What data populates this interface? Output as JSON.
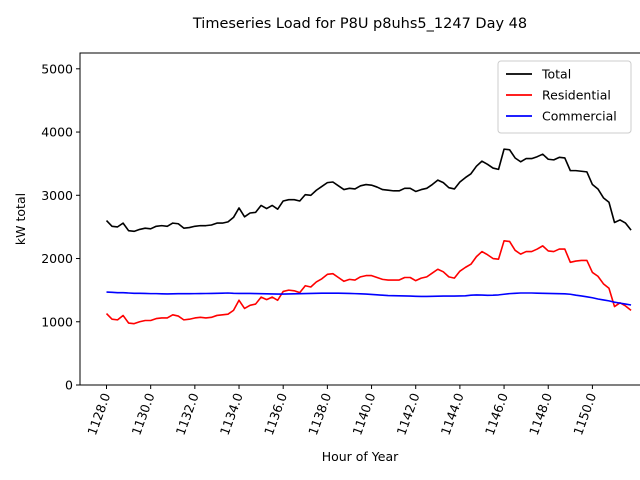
{
  "chart_data": {
    "type": "line",
    "title": "Timeseries Load for P8U p8uhs5_1247  Day 48",
    "xlabel": "Hour of Year",
    "ylabel": "kW total",
    "xlim": [
      1126.8,
      1152.2
    ],
    "ylim": [
      0,
      5250
    ],
    "xticks": [
      1128,
      1130,
      1132,
      1134,
      1136,
      1138,
      1140,
      1142,
      1144,
      1146,
      1148,
      1150
    ],
    "xtick_labels": [
      "1128.0",
      "1130.0",
      "1132.0",
      "1134.0",
      "1136.0",
      "1138.0",
      "1140.0",
      "1142.0",
      "1144.0",
      "1146.0",
      "1148.0",
      "1150.0"
    ],
    "yticks": [
      0,
      1000,
      2000,
      3000,
      4000,
      5000
    ],
    "ytick_labels": [
      "0",
      "1000",
      "2000",
      "3000",
      "4000",
      "5000"
    ],
    "legend_position": "top-right",
    "x_start": 1128.0,
    "x_step": 0.25,
    "series": [
      {
        "name": "Total",
        "color": "#000000",
        "values": [
          2600,
          2510,
          2500,
          2560,
          2440,
          2430,
          2460,
          2480,
          2470,
          2510,
          2520,
          2510,
          2560,
          2550,
          2480,
          2490,
          2510,
          2520,
          2520,
          2530,
          2560,
          2560,
          2580,
          2650,
          2800,
          2660,
          2720,
          2730,
          2840,
          2790,
          2840,
          2780,
          2910,
          2930,
          2930,
          2910,
          3010,
          3000,
          3080,
          3140,
          3200,
          3210,
          3150,
          3090,
          3110,
          3100,
          3150,
          3170,
          3160,
          3130,
          3090,
          3080,
          3070,
          3070,
          3110,
          3110,
          3060,
          3090,
          3110,
          3170,
          3240,
          3200,
          3120,
          3100,
          3210,
          3280,
          3340,
          3460,
          3540,
          3490,
          3430,
          3410,
          3730,
          3720,
          3590,
          3530,
          3580,
          3580,
          3610,
          3650,
          3570,
          3560,
          3600,
          3590,
          3390,
          3390,
          3380,
          3370,
          3170,
          3100,
          2960,
          2890,
          2570,
          2610,
          2560,
          2450
        ]
      },
      {
        "name": "Residential",
        "color": "#ff0000",
        "values": [
          1130,
          1040,
          1030,
          1100,
          980,
          970,
          1000,
          1020,
          1020,
          1050,
          1060,
          1060,
          1110,
          1090,
          1030,
          1040,
          1060,
          1070,
          1060,
          1070,
          1100,
          1110,
          1120,
          1180,
          1340,
          1210,
          1260,
          1280,
          1390,
          1350,
          1390,
          1340,
          1480,
          1500,
          1490,
          1460,
          1570,
          1550,
          1630,
          1680,
          1750,
          1760,
          1700,
          1640,
          1670,
          1660,
          1710,
          1730,
          1730,
          1700,
          1670,
          1660,
          1660,
          1660,
          1700,
          1700,
          1650,
          1690,
          1710,
          1770,
          1830,
          1790,
          1710,
          1690,
          1800,
          1860,
          1910,
          2030,
          2110,
          2060,
          2000,
          1990,
          2280,
          2270,
          2130,
          2070,
          2110,
          2110,
          2150,
          2200,
          2120,
          2110,
          2150,
          2150,
          1940,
          1960,
          1970,
          1970,
          1780,
          1720,
          1600,
          1530,
          1240,
          1300,
          1250,
          1180
        ]
      },
      {
        "name": "Commercial",
        "color": "#0000ff",
        "values": [
          1470,
          1465,
          1460,
          1460,
          1455,
          1450,
          1450,
          1448,
          1445,
          1445,
          1442,
          1440,
          1442,
          1444,
          1444,
          1444,
          1445,
          1446,
          1447,
          1448,
          1450,
          1452,
          1455,
          1450,
          1448,
          1448,
          1448,
          1446,
          1444,
          1442,
          1440,
          1438,
          1438,
          1440,
          1442,
          1444,
          1446,
          1448,
          1450,
          1452,
          1452,
          1452,
          1452,
          1450,
          1448,
          1445,
          1442,
          1438,
          1432,
          1426,
          1420,
          1415,
          1412,
          1410,
          1408,
          1406,
          1402,
          1400,
          1400,
          1402,
          1404,
          1406,
          1406,
          1406,
          1408,
          1410,
          1420,
          1425,
          1422,
          1418,
          1420,
          1425,
          1435,
          1445,
          1450,
          1455,
          1455,
          1455,
          1452,
          1450,
          1448,
          1446,
          1444,
          1442,
          1435,
          1420,
          1408,
          1395,
          1380,
          1360,
          1345,
          1330,
          1310,
          1295,
          1280,
          1265
        ]
      }
    ]
  }
}
